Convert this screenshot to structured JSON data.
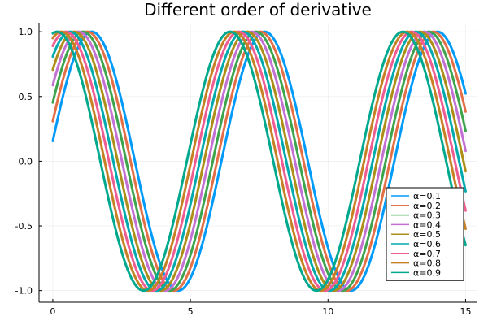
{
  "chart_data": {
    "type": "line",
    "title": "Different order of derivative",
    "xlabel": "",
    "ylabel": "",
    "xlim": [
      -0.5,
      15.4
    ],
    "ylim": [
      -1.09,
      1.07
    ],
    "x_ticks": [
      0,
      5,
      10,
      15
    ],
    "x_tick_labels": [
      "0",
      "5",
      "10",
      "15"
    ],
    "y_ticks": [
      -1.0,
      -0.5,
      0.0,
      0.5,
      1.0
    ],
    "y_tick_labels": [
      "-1.0",
      "-0.5",
      "0.0",
      "0.5",
      "1.0"
    ],
    "grid": true,
    "legend_position": "bottom-right",
    "x_range": [
      0,
      15
    ],
    "formula": "sin(x + alpha*pi/2) from x=0",
    "series": [
      {
        "name": "α=0.1",
        "alpha": 0.1,
        "color": "#009af9"
      },
      {
        "name": "α=0.2",
        "alpha": 0.2,
        "color": "#e26f46"
      },
      {
        "name": "α=0.3",
        "alpha": 0.3,
        "color": "#3da44d"
      },
      {
        "name": "α=0.4",
        "alpha": 0.4,
        "color": "#c271d2"
      },
      {
        "name": "α=0.5",
        "alpha": 0.5,
        "color": "#ac8e18"
      },
      {
        "name": "α=0.6",
        "alpha": 0.6,
        "color": "#00a9ad"
      },
      {
        "name": "α=0.7",
        "alpha": 0.7,
        "color": "#ed5d92"
      },
      {
        "name": "α=0.8",
        "alpha": 0.8,
        "color": "#c68125"
      },
      {
        "name": "α=0.9",
        "alpha": 0.9,
        "color": "#00a98d"
      }
    ]
  }
}
